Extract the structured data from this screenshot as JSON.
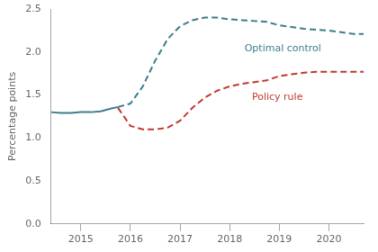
{
  "chart_data": {
    "type": "line",
    "ylabel": "Percentage points",
    "xlim": [
      2014.4,
      2020.7
    ],
    "xticks": [
      2015,
      2016,
      2017,
      2018,
      2019,
      2020
    ],
    "ylim": [
      0.0,
      2.5
    ],
    "yticks": [
      {
        "value": 0.0,
        "label": "0.0"
      },
      0.5,
      {
        "value": 1.0,
        "label": "1.0"
      },
      1.5,
      {
        "value": 2.0,
        "label": "2.0"
      },
      2.5
    ],
    "grid": false,
    "series": [
      {
        "color": "#3d7d8d",
        "line_style": "solid",
        "x": [
          2014.4,
          2014.6,
          2014.8,
          2015.0,
          2015.2,
          2015.4,
          2015.6,
          2015.75
        ],
        "values": [
          1.3,
          1.29,
          1.29,
          1.3,
          1.3,
          1.31,
          1.34,
          1.36
        ]
      },
      {
        "color": "#3d7d8d",
        "line_style": "dashed",
        "x": [
          2015.75,
          2016.0,
          2016.25,
          2016.5,
          2016.75,
          2017.0,
          2017.25,
          2017.5,
          2017.75,
          2018.0,
          2018.25,
          2018.5,
          2018.75,
          2019.0,
          2019.25,
          2019.5,
          2019.75,
          2020.0,
          2020.25,
          2020.5,
          2020.7
        ],
        "values": [
          1.36,
          1.4,
          1.6,
          1.9,
          2.15,
          2.3,
          2.37,
          2.4,
          2.4,
          2.38,
          2.37,
          2.36,
          2.35,
          2.31,
          2.29,
          2.27,
          2.26,
          2.25,
          2.23,
          2.21,
          2.21
        ]
      },
      {
        "color": "#c0392b",
        "line_style": "dashed",
        "x": [
          2015.75,
          2016.0,
          2016.25,
          2016.5,
          2016.75,
          2017.0,
          2017.25,
          2017.5,
          2017.75,
          2018.0,
          2018.25,
          2018.5,
          2018.75,
          2019.0,
          2019.25,
          2019.5,
          2019.75,
          2020.0,
          2020.25,
          2020.5,
          2020.7
        ],
        "values": [
          1.35,
          1.14,
          1.1,
          1.1,
          1.12,
          1.2,
          1.35,
          1.47,
          1.55,
          1.6,
          1.63,
          1.65,
          1.67,
          1.72,
          1.74,
          1.76,
          1.77,
          1.77,
          1.77,
          1.77,
          1.77
        ]
      }
    ],
    "annotations": [
      {
        "text": "Optimal control",
        "x": 2018.3,
        "y": 2.1,
        "color": "#3d7d8d"
      },
      {
        "text": "Policy rule",
        "x": 2018.45,
        "y": 1.53,
        "color": "#c0392b"
      }
    ]
  }
}
